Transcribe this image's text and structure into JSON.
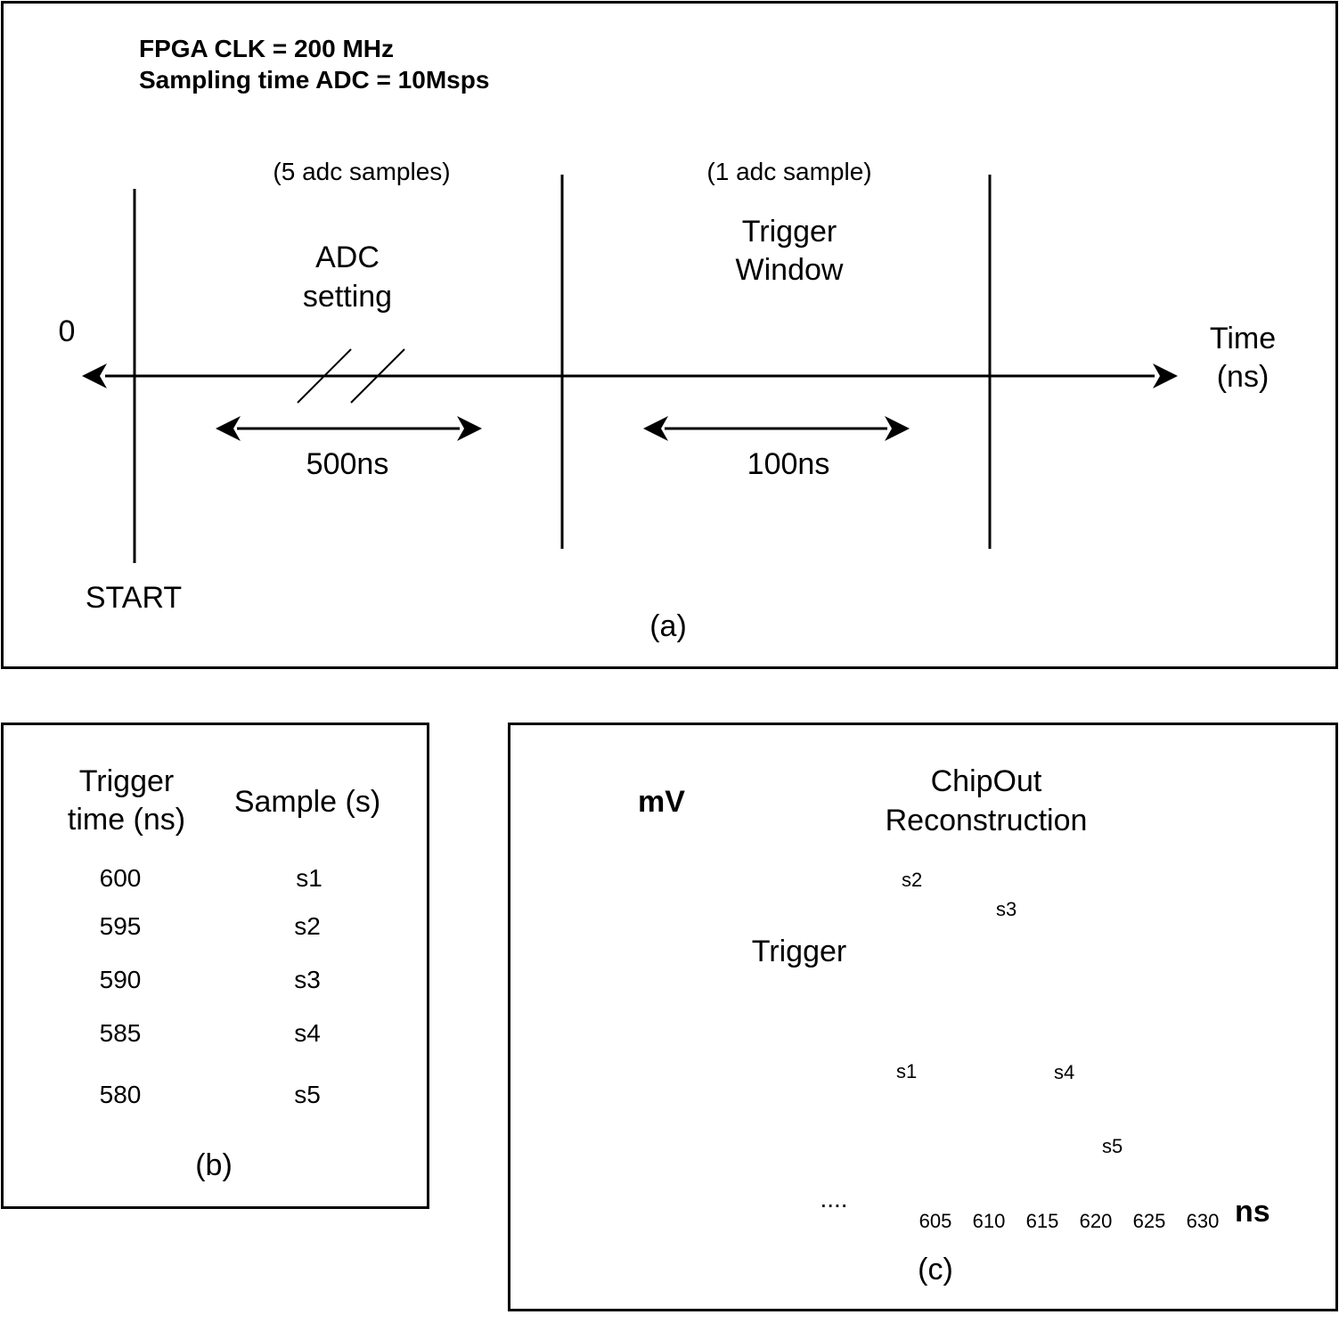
{
  "panel_a": {
    "header_line1": "FPGA CLK = 200 MHz",
    "header_line2": "Sampling time ADC = 10Msps",
    "adc_samples_note": "(5 adc samples)",
    "adc_setting_line1": "ADC",
    "adc_setting_line2": "setting",
    "trigger_samples_note": "(1 adc sample)",
    "trigger_window_line1": "Trigger",
    "trigger_window_line2": "Window",
    "origin_label": "0",
    "axis_label_line1": "Time",
    "axis_label_line2": "(ns)",
    "adc_duration": "500ns",
    "trigger_duration": "100ns",
    "start_label": "START",
    "caption": "(a)"
  },
  "panel_b": {
    "col1_header_line1": "Trigger",
    "col1_header_line2": "time (ns)",
    "col2_header": "Sample (s)",
    "rows": [
      {
        "time": "600",
        "sample": "s1"
      },
      {
        "time": "595",
        "sample": "s2"
      },
      {
        "time": "590",
        "sample": "s3"
      },
      {
        "time": "585",
        "sample": "s4"
      },
      {
        "time": "580",
        "sample": "s5"
      }
    ],
    "caption": "(b)"
  },
  "panel_c": {
    "title_line1": "ChipOut",
    "title_line2": "Reconstruction",
    "y_axis_label": "mV",
    "x_axis_label": "ns",
    "trigger_label": "Trigger",
    "ellipsis": "....",
    "x_ticks": [
      "605",
      "610",
      "615",
      "620",
      "625",
      "630"
    ],
    "sample_points": [
      {
        "label": "s1",
        "ns": 600
      },
      {
        "label": "s2",
        "ns": 605
      },
      {
        "label": "s3",
        "ns": 610
      },
      {
        "label": "s4",
        "ns": 615
      },
      {
        "label": "s5",
        "ns": 619.5
      }
    ],
    "caption": "(c)",
    "colors": {
      "fit_line": "#1a1aaa",
      "point": "#0000cc",
      "curve": "#000000"
    }
  }
}
